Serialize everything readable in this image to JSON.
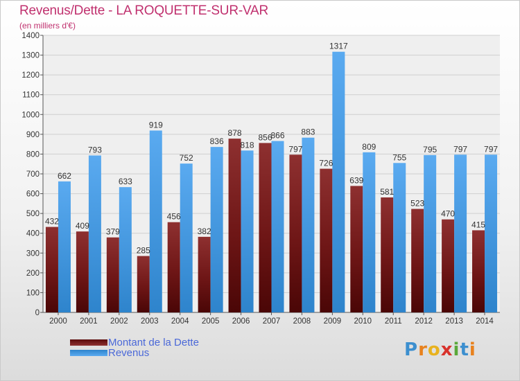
{
  "chart_data": {
    "type": "bar",
    "title": "Revenus/Dette - LA ROQUETTE-SUR-VAR",
    "subtitle": "(en milliers d'€)",
    "xlabel": "",
    "ylabel": "",
    "ylim": [
      0,
      1400
    ],
    "yticks": [
      0,
      100,
      200,
      300,
      400,
      500,
      600,
      700,
      800,
      900,
      1000,
      1100,
      1200,
      1300,
      1400
    ],
    "grid": true,
    "legend_position": "bottom-left",
    "categories": [
      "2000",
      "2001",
      "2002",
      "2003",
      "2004",
      "2005",
      "2006",
      "2007",
      "2008",
      "2009",
      "2010",
      "2011",
      "2012",
      "2013",
      "2014"
    ],
    "series": [
      {
        "name": "Montant de la Dette",
        "color": "#8c1f1f",
        "values": [
          432,
          409,
          379,
          285,
          456,
          382,
          878,
          856,
          797,
          726,
          639,
          581,
          523,
          470,
          415
        ]
      },
      {
        "name": "Revenus",
        "color": "#3d94dc",
        "values": [
          662,
          793,
          633,
          919,
          752,
          836,
          818,
          866,
          883,
          1317,
          809,
          755,
          795,
          797,
          797
        ]
      }
    ]
  },
  "logo": {
    "text": "Proxiti",
    "letters": [
      {
        "ch": "P",
        "color": "#3c8fcf"
      },
      {
        "ch": "r",
        "color": "#e8821e"
      },
      {
        "ch": "o",
        "color": "#e8b21e"
      },
      {
        "ch": "x",
        "color": "#d8322c"
      },
      {
        "ch": "i",
        "color": "#5aa83a"
      },
      {
        "ch": "t",
        "color": "#3c8fcf"
      },
      {
        "ch": "i",
        "color": "#e8821e"
      }
    ]
  }
}
